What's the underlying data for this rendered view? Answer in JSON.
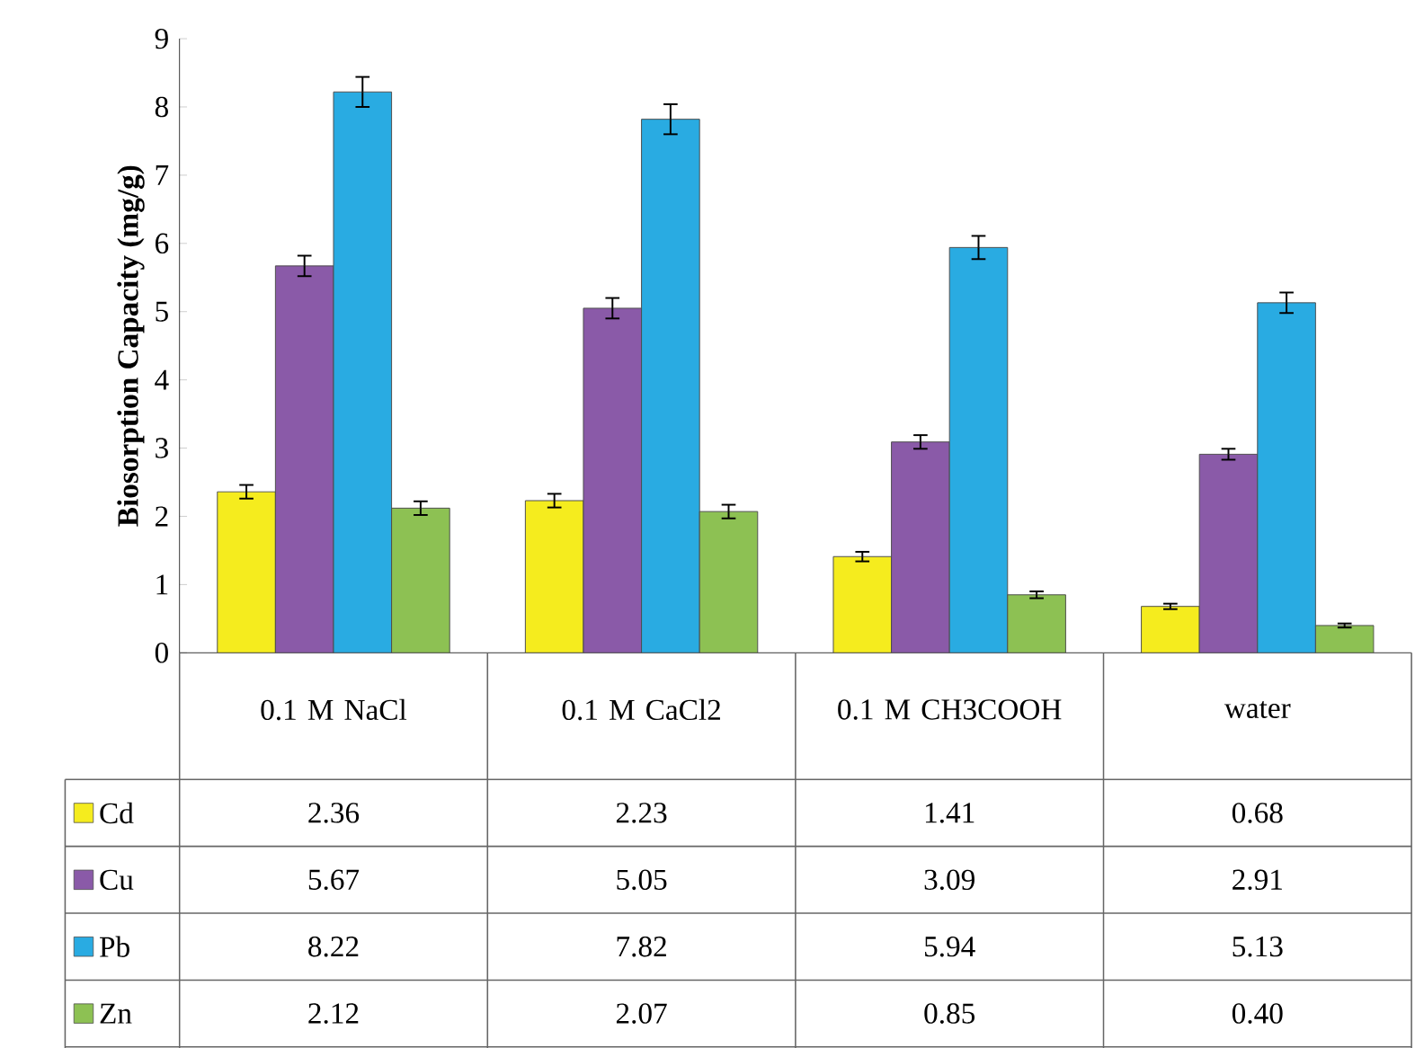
{
  "chart_data": {
    "type": "bar",
    "ylabel": "Biosorption Capacity (mg/g)",
    "categories": [
      "0.1 M NaCl",
      "0.1 M CaCl2",
      "0.1 M CH3COOH",
      "water"
    ],
    "ylim": [
      0,
      9
    ],
    "yticks": [
      0,
      1,
      2,
      3,
      4,
      5,
      6,
      7,
      8,
      9
    ],
    "legend": "bottom",
    "series": [
      {
        "name": "Cd",
        "color": "#f5ec1e",
        "values": [
          2.36,
          2.23,
          1.41,
          0.68
        ],
        "errors": [
          0.1,
          0.1,
          0.07,
          0.04
        ],
        "value_labels": [
          "2.36",
          "2.23",
          "1.41",
          "0.68"
        ]
      },
      {
        "name": "Cu",
        "color": "#8a5aa8",
        "values": [
          5.67,
          5.05,
          3.09,
          2.91
        ],
        "errors": [
          0.15,
          0.15,
          0.1,
          0.08
        ],
        "value_labels": [
          "5.67",
          "5.05",
          "3.09",
          "2.91"
        ]
      },
      {
        "name": "Pb",
        "color": "#29abe2",
        "values": [
          8.22,
          7.82,
          5.94,
          5.13
        ],
        "errors": [
          0.22,
          0.22,
          0.17,
          0.15
        ],
        "value_labels": [
          "8.22",
          "7.82",
          "5.94",
          "5.13"
        ]
      },
      {
        "name": "Zn",
        "color": "#8dc153",
        "values": [
          2.12,
          2.07,
          0.85,
          0.4
        ],
        "errors": [
          0.1,
          0.1,
          0.05,
          0.03
        ],
        "value_labels": [
          "2.12",
          "2.07",
          "0.85",
          "0.40"
        ]
      }
    ]
  }
}
